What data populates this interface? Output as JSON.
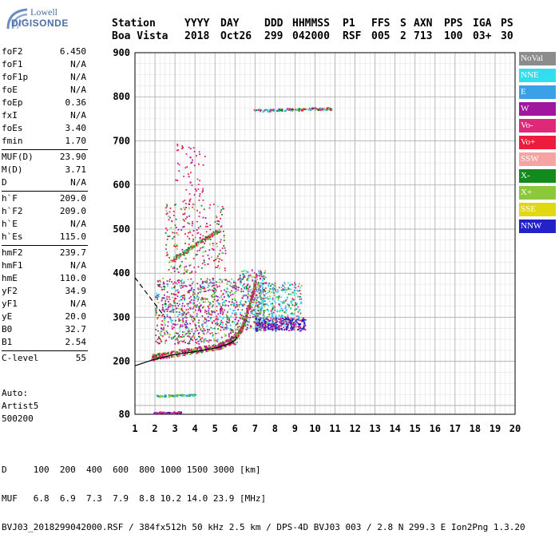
{
  "logo": {
    "line1": "Lowell",
    "line2": "DIGISONDE"
  },
  "header": {
    "labels": [
      "Station",
      "YYYY",
      "DAY",
      "DDD",
      "HHMMSS",
      "P1",
      "FFS",
      "S",
      "AXN",
      "PPS",
      "IGA",
      "PS"
    ],
    "values": [
      "Boa Vista",
      "2018",
      "Oct26",
      "299",
      "042000",
      "RSF",
      "005",
      "2",
      "713",
      "100",
      "03+",
      "30"
    ]
  },
  "params": [
    {
      "label": "foF2",
      "value": "6.450"
    },
    {
      "label": "foF1",
      "value": "N/A"
    },
    {
      "label": "foF1p",
      "value": "N/A"
    },
    {
      "label": "foE",
      "value": "N/A"
    },
    {
      "label": "foEp",
      "value": "0.36"
    },
    {
      "label": "fxI",
      "value": "N/A"
    },
    {
      "label": "foEs",
      "value": "3.40"
    },
    {
      "label": "fmin",
      "value": "1.70"
    },
    {
      "label": "MUF(D)",
      "value": "23.90"
    },
    {
      "label": "M(D)",
      "value": "3.71"
    },
    {
      "label": "D",
      "value": "N/A"
    },
    {
      "label": "h`F",
      "value": "209.0"
    },
    {
      "label": "h`F2",
      "value": "209.0"
    },
    {
      "label": "h`E",
      "value": "N/A"
    },
    {
      "label": "h`Es",
      "value": "115.0"
    },
    {
      "label": "hmF2",
      "value": "239.7"
    },
    {
      "label": "hmF1",
      "value": "N/A"
    },
    {
      "label": "hmE",
      "value": "110.0"
    },
    {
      "label": "yF2",
      "value": "34.9"
    },
    {
      "label": "yF1",
      "value": "N/A"
    },
    {
      "label": "yE",
      "value": "20.0"
    },
    {
      "label": "B0",
      "value": "32.7"
    },
    {
      "label": "B1",
      "value": "2.54"
    },
    {
      "label": "C-level",
      "value": "55"
    }
  ],
  "auto": {
    "line1": "Auto:",
    "line2": "Artist5",
    "line3": "500200"
  },
  "legend": [
    {
      "label": "NoVal",
      "color": "#8c8c8c"
    },
    {
      "label": "NNE",
      "color": "#33ddf0"
    },
    {
      "label": "E",
      "color": "#3aa0e8"
    },
    {
      "label": "W",
      "color": "#a0169e"
    },
    {
      "label": "Vo-",
      "color": "#e0287a"
    },
    {
      "label": "Vo+",
      "color": "#ec1c3c"
    },
    {
      "label": "SSW",
      "color": "#f6a3a3"
    },
    {
      "label": "X-",
      "color": "#138a1c"
    },
    {
      "label": "X+",
      "color": "#8cc83c"
    },
    {
      "label": "SSE",
      "color": "#e0d810"
    },
    {
      "label": "NNW",
      "color": "#2222c8"
    }
  ],
  "chart_data": {
    "type": "scatter",
    "title": "",
    "xlabel": "",
    "ylabel": "",
    "x_ticks": [
      "1",
      "2",
      "3",
      "4",
      "5",
      "6",
      "7",
      "8",
      "9",
      "10",
      "11",
      "12",
      "13",
      "14",
      "15",
      "16",
      "17",
      "18",
      "19",
      "20"
    ],
    "y_ticks": [
      "80",
      "200",
      "300",
      "400",
      "500",
      "600",
      "700",
      "800",
      "900"
    ],
    "xlim": [
      1,
      20
    ],
    "ylim": [
      80,
      900
    ],
    "grid": true,
    "legend_placement": "right",
    "profile_curve": [
      [
        1.0,
        190
      ],
      [
        2.0,
        205
      ],
      [
        3.0,
        216
      ],
      [
        4.0,
        222
      ],
      [
        5.0,
        230
      ],
      [
        5.7,
        240
      ],
      [
        6.0,
        248
      ],
      [
        6.1,
        256
      ]
    ],
    "dashed_curve": [
      [
        1.0,
        390
      ],
      [
        1.5,
        360
      ],
      [
        2.0,
        330
      ],
      [
        2.5,
        300
      ]
    ],
    "trace_f2": [
      [
        1.8,
        210
      ],
      [
        2.5,
        216
      ],
      [
        3.5,
        223
      ],
      [
        4.5,
        230
      ],
      [
        5.2,
        236
      ],
      [
        5.7,
        245
      ],
      [
        6.0,
        258
      ],
      [
        6.3,
        275
      ],
      [
        6.5,
        300
      ],
      [
        6.7,
        330
      ],
      [
        6.9,
        360
      ],
      [
        7.0,
        380
      ]
    ],
    "trace_es": [
      [
        2.0,
        123
      ],
      [
        2.5,
        123
      ],
      [
        3.0,
        124
      ],
      [
        3.5,
        125
      ],
      [
        4.0,
        125
      ]
    ],
    "trace_low": [
      [
        1.9,
        84
      ],
      [
        2.3,
        85
      ],
      [
        2.8,
        85
      ],
      [
        3.3,
        86
      ]
    ],
    "trace_upper": [
      [
        6.9,
        770
      ],
      [
        7.5,
        770
      ],
      [
        8.0,
        771
      ],
      [
        8.5,
        772
      ],
      [
        9.0,
        772
      ],
      [
        9.5,
        773
      ],
      [
        10.0,
        774
      ],
      [
        10.5,
        774
      ],
      [
        10.8,
        774
      ]
    ],
    "trace_mid": [
      [
        2.8,
        430
      ],
      [
        3.3,
        445
      ],
      [
        3.8,
        460
      ],
      [
        4.3,
        475
      ],
      [
        4.8,
        488
      ],
      [
        5.2,
        498
      ]
    ]
  },
  "bottom": {
    "line1": "D     100  200  400  600  800 1000 1500 3000 [km]",
    "line2": "MUF   6.8  6.9  7.3  7.9  8.8 10.2 14.0 23.9 [MHz]",
    "line3": "BVJ03_2018299042000.RSF / 384fx512h 50 kHz 2.5 km / DPS-4D BVJ03 003 / 2.8 N 299.3 E Ion2Png 1.3.20"
  }
}
